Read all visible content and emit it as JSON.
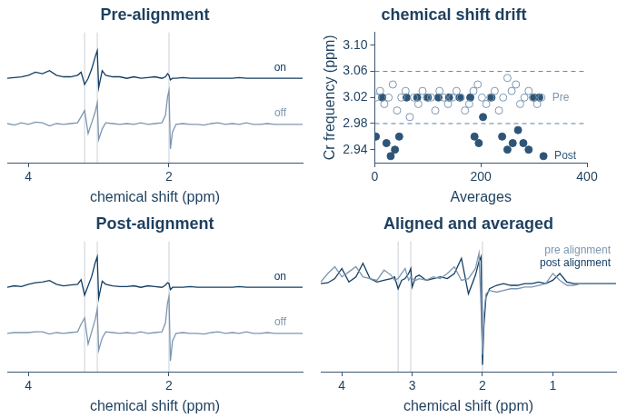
{
  "chart_data": [
    {
      "type": "line",
      "title": "Pre-alignment",
      "x_label": "chemical shift (ppm)",
      "x": [
        4.3,
        4.2,
        4.1,
        4.0,
        3.9,
        3.8,
        3.7,
        3.6,
        3.5,
        3.4,
        3.3,
        3.25,
        3.2,
        3.15,
        3.1,
        3.05,
        3.02,
        3.0,
        2.95,
        2.9,
        2.8,
        2.7,
        2.6,
        2.5,
        2.4,
        2.3,
        2.2,
        2.1,
        2.05,
        2.02,
        2.0,
        1.98,
        1.95,
        1.9,
        1.8,
        1.7,
        1.6,
        1.5,
        1.4,
        1.3,
        1.2,
        1.1,
        1.0,
        0.9,
        0.8,
        0.7,
        0.6,
        0.5,
        0.4,
        0.3,
        0.2,
        0.1
      ],
      "xlim": [
        4.3,
        0.1
      ],
      "xticks": [
        4,
        2
      ],
      "ylim": [
        -2.5,
        6
      ],
      "tick_labels": "x",
      "grid": false,
      "vlines": [
        3.2,
        3.02,
        2.0
      ],
      "series": [
        {
          "name": "on",
          "color": "#123e63",
          "values": [
            3.0,
            3.05,
            3.1,
            3.2,
            3.4,
            3.3,
            3.5,
            3.2,
            3.1,
            3.1,
            3.2,
            3.4,
            2.6,
            3.0,
            3.6,
            4.4,
            4.8,
            2.4,
            3.5,
            3.2,
            3.1,
            3.1,
            3.0,
            3.1,
            3.0,
            3.05,
            3.1,
            3.0,
            3.1,
            3.3,
            3.2,
            2.9,
            3.0,
            3.0,
            3.05,
            3.0,
            3.0,
            3.0,
            3.0,
            3.0,
            3.0,
            3.0,
            3.05,
            3.0,
            3.0,
            3.0,
            3.0,
            3.0,
            3.0,
            3.0,
            3.0,
            3.0
          ]
        },
        {
          "name": "off",
          "color": "#7d96b0",
          "values": [
            0.05,
            -0.05,
            0.1,
            0.0,
            0.15,
            0.1,
            -0.1,
            0.05,
            0.0,
            0.05,
            0.1,
            0.5,
            0.9,
            -0.6,
            0.1,
            0.8,
            1.4,
            -1.0,
            -0.3,
            0.1,
            0.05,
            0.0,
            0.05,
            0.0,
            0.1,
            0.0,
            0.05,
            0.1,
            0.6,
            1.8,
            2.2,
            -1.6,
            -0.5,
            0.0,
            0.05,
            0.0,
            0.0,
            -0.05,
            0.05,
            0.1,
            0.0,
            0.05,
            0.0,
            0.1,
            0.0,
            0.0,
            0.05,
            0.0,
            0.0,
            0.0,
            0.0,
            0.0
          ]
        }
      ]
    },
    {
      "type": "scatter",
      "title": "chemical shift drift",
      "x_label": "Averages",
      "y_label": "Cr frequency (ppm)",
      "xlim": [
        0,
        400
      ],
      "xticks": [
        0,
        200,
        400
      ],
      "ylim": [
        2.92,
        3.12
      ],
      "yticks": [
        2.94,
        2.98,
        3.02,
        3.06,
        {
          "value": 3.1,
          "label": "3.10"
        }
      ],
      "grid": false,
      "hlines": [
        2.98,
        3.06
      ],
      "series": [
        {
          "name": "Pre",
          "color": "#7d96b0",
          "marker": "circle_open",
          "x": [
            2,
            10,
            18,
            26,
            34,
            42,
            50,
            58,
            66,
            74,
            82,
            90,
            98,
            106,
            114,
            122,
            130,
            138,
            146,
            154,
            162,
            170,
            178,
            186,
            194,
            202,
            210,
            218,
            226,
            234,
            242,
            250,
            258,
            266,
            274,
            282,
            290,
            298,
            306,
            314
          ],
          "values": [
            3.02,
            3.03,
            3.01,
            3.02,
            3.04,
            3.0,
            3.02,
            3.03,
            2.99,
            3.02,
            3.01,
            3.03,
            3.02,
            3.02,
            3.0,
            3.03,
            3.02,
            3.01,
            3.02,
            3.03,
            3.02,
            3.0,
            3.01,
            3.03,
            3.04,
            3.02,
            3.01,
            3.02,
            3.03,
            3.0,
            3.02,
            3.05,
            3.03,
            3.04,
            3.01,
            3.02,
            3.03,
            3.02,
            3.01,
            3.02
          ]
        },
        {
          "name": "Post",
          "color": "#2e5578",
          "marker": "circle",
          "x": [
            2,
            14,
            22,
            30,
            38,
            46,
            60,
            80,
            100,
            120,
            140,
            160,
            180,
            188,
            196,
            204,
            220,
            240,
            250,
            260,
            270,
            280,
            290,
            300,
            310,
            318
          ],
          "values": [
            2.96,
            3.02,
            2.95,
            2.93,
            2.94,
            2.96,
            3.02,
            3.02,
            3.02,
            3.02,
            3.02,
            3.02,
            3.02,
            2.96,
            2.95,
            2.99,
            3.02,
            2.96,
            2.94,
            2.95,
            2.97,
            2.95,
            2.94,
            3.02,
            3.02,
            2.93
          ]
        }
      ]
    },
    {
      "type": "line",
      "title": "Post-alignment",
      "x_label": "chemical shift (ppm)",
      "x": [
        4.3,
        4.2,
        4.1,
        4.0,
        3.9,
        3.8,
        3.7,
        3.6,
        3.5,
        3.4,
        3.3,
        3.25,
        3.2,
        3.15,
        3.1,
        3.05,
        3.02,
        3.0,
        2.95,
        2.9,
        2.8,
        2.7,
        2.6,
        2.5,
        2.4,
        2.3,
        2.2,
        2.1,
        2.05,
        2.02,
        2.0,
        1.98,
        1.95,
        1.9,
        1.8,
        1.7,
        1.6,
        1.5,
        1.4,
        1.3,
        1.2,
        1.1,
        1.0,
        0.9,
        0.8,
        0.7,
        0.6,
        0.5,
        0.4,
        0.3,
        0.2,
        0.1
      ],
      "xlim": [
        4.3,
        0.1
      ],
      "xticks": [
        4,
        2
      ],
      "ylim": [
        -2.5,
        6
      ],
      "tick_labels": "x",
      "grid": false,
      "vlines": [
        3.2,
        3.02,
        2.0
      ],
      "series": [
        {
          "name": "on",
          "color": "#123e63",
          "values": [
            3.0,
            3.1,
            3.05,
            3.2,
            3.3,
            3.35,
            3.45,
            3.2,
            3.1,
            3.15,
            3.2,
            3.5,
            2.5,
            3.1,
            3.7,
            4.6,
            5.0,
            2.3,
            3.4,
            3.2,
            3.1,
            3.05,
            3.05,
            3.1,
            3.0,
            3.1,
            3.05,
            3.0,
            3.15,
            3.3,
            3.25,
            2.85,
            3.0,
            3.0,
            3.0,
            3.05,
            3.0,
            3.0,
            3.0,
            3.0,
            3.0,
            3.0,
            3.05,
            3.0,
            3.0,
            3.0,
            3.0,
            3.0,
            3.0,
            3.0,
            3.0,
            3.0
          ]
        },
        {
          "name": "off",
          "color": "#7d96b0",
          "values": [
            0.0,
            0.05,
            0.05,
            0.05,
            0.1,
            0.1,
            -0.05,
            0.05,
            0.0,
            0.05,
            0.1,
            0.6,
            1.0,
            -0.7,
            0.1,
            0.9,
            1.6,
            -1.1,
            -0.3,
            0.1,
            0.05,
            0.0,
            0.05,
            0.0,
            0.1,
            0.0,
            0.05,
            0.1,
            0.7,
            2.0,
            2.4,
            -1.8,
            -0.5,
            0.0,
            0.05,
            0.0,
            0.0,
            -0.05,
            0.05,
            0.1,
            0.0,
            0.05,
            0.0,
            0.1,
            0.0,
            0.0,
            0.05,
            0.0,
            0.0,
            0.0,
            0.0,
            0.0
          ]
        }
      ]
    },
    {
      "type": "line",
      "title": "Aligned and averaged",
      "x_label": "chemical shift (ppm)",
      "x": [
        4.3,
        4.2,
        4.1,
        4.0,
        3.9,
        3.8,
        3.7,
        3.6,
        3.5,
        3.4,
        3.3,
        3.25,
        3.2,
        3.15,
        3.1,
        3.05,
        3.02,
        3.0,
        2.95,
        2.9,
        2.8,
        2.7,
        2.6,
        2.5,
        2.4,
        2.3,
        2.2,
        2.1,
        2.05,
        2.02,
        2.0,
        1.98,
        1.95,
        1.9,
        1.8,
        1.7,
        1.6,
        1.5,
        1.4,
        1.3,
        1.2,
        1.1,
        1.0,
        0.9,
        0.8,
        0.7,
        0.6,
        0.5,
        0.4,
        0.3,
        0.2,
        0.1
      ],
      "xlim": [
        4.3,
        0.1
      ],
      "xticks": [
        4,
        3,
        2,
        1
      ],
      "ylim": [
        -5.2,
        2.5
      ],
      "tick_labels": "x",
      "grid": false,
      "legend": "upper right",
      "vlines": [
        3.2,
        3.02,
        2.0
      ],
      "series": [
        {
          "name": "pre alignment",
          "color": "#7d96b0",
          "values": [
            0.1,
            0.6,
            1.0,
            0.4,
            0.7,
            1.0,
            0.4,
            0.3,
            0.2,
            0.8,
            0.5,
            0.2,
            0.3,
            0.6,
            0.9,
            0.2,
            0.4,
            0.3,
            0.2,
            0.3,
            0.2,
            0.4,
            0.3,
            0.6,
            1.0,
            0.2,
            0.3,
            0.9,
            1.8,
            -1.5,
            -4.2,
            -1.8,
            -0.6,
            -0.4,
            -0.5,
            -0.4,
            -0.3,
            -0.3,
            -0.2,
            -0.2,
            -0.1,
            0.0,
            0.6,
            0.2,
            -0.1,
            -0.1,
            0.0,
            0.0,
            0.0,
            0.0,
            0.0,
            0.0
          ]
        },
        {
          "name": "post alignment",
          "color": "#123e63",
          "values": [
            0.0,
            0.05,
            0.3,
            0.9,
            0.1,
            0.4,
            1.2,
            0.3,
            0.1,
            0.2,
            0.3,
            0.4,
            -0.3,
            0.2,
            0.3,
            0.6,
            0.9,
            -0.2,
            0.4,
            0.5,
            0.2,
            0.3,
            0.4,
            0.3,
            0.6,
            1.5,
            -0.6,
            0.5,
            1.3,
            1.6,
            -4.8,
            -2.5,
            -0.8,
            -0.3,
            -0.1,
            0.0,
            -0.1,
            -0.1,
            0.0,
            0.0,
            0.1,
            0.0,
            0.2,
            0.6,
            0.1,
            0.0,
            0.0,
            0.0,
            0.0,
            0.0,
            0.0,
            0.0
          ]
        }
      ]
    }
  ]
}
